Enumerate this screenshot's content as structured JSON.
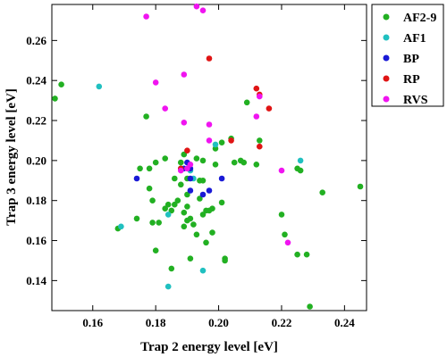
{
  "chart_data": {
    "type": "scatter",
    "title": "",
    "xlabel": "Trap 2 energy level [eV]",
    "ylabel": "Trap 3 energy level [eV]",
    "xlim": [
      0.147,
      0.247
    ],
    "ylim": [
      0.125,
      0.278
    ],
    "xticks": [
      0.16,
      0.18,
      0.2,
      0.22,
      0.24
    ],
    "xtick_labels": [
      "0.16",
      "0.18",
      "0.20",
      "0.22",
      "0.24"
    ],
    "yticks": [
      0.14,
      0.16,
      0.18,
      0.2,
      0.22,
      0.24,
      0.26
    ],
    "ytick_labels": [
      "0.14",
      "0.16",
      "0.18",
      "0.20",
      "0.22",
      "0.24",
      "0.26"
    ],
    "grid": false,
    "legend_position": "outside-top-right",
    "series": [
      {
        "name": "AF2-9",
        "color": "#22b022",
        "points": [
          [
            0.148,
            0.231
          ],
          [
            0.15,
            0.238
          ],
          [
            0.168,
            0.166
          ],
          [
            0.174,
            0.171
          ],
          [
            0.175,
            0.196
          ],
          [
            0.177,
            0.222
          ],
          [
            0.178,
            0.186
          ],
          [
            0.178,
            0.196
          ],
          [
            0.179,
            0.18
          ],
          [
            0.179,
            0.169
          ],
          [
            0.18,
            0.199
          ],
          [
            0.18,
            0.155
          ],
          [
            0.181,
            0.169
          ],
          [
            0.183,
            0.201
          ],
          [
            0.183,
            0.176
          ],
          [
            0.184,
            0.178
          ],
          [
            0.185,
            0.175
          ],
          [
            0.185,
            0.146
          ],
          [
            0.186,
            0.191
          ],
          [
            0.186,
            0.178
          ],
          [
            0.187,
            0.18
          ],
          [
            0.188,
            0.199
          ],
          [
            0.188,
            0.196
          ],
          [
            0.188,
            0.188
          ],
          [
            0.189,
            0.203
          ],
          [
            0.189,
            0.174
          ],
          [
            0.189,
            0.167
          ],
          [
            0.19,
            0.17
          ],
          [
            0.19,
            0.191
          ],
          [
            0.19,
            0.183
          ],
          [
            0.19,
            0.177
          ],
          [
            0.191,
            0.171
          ],
          [
            0.191,
            0.151
          ],
          [
            0.192,
            0.168
          ],
          [
            0.193,
            0.201
          ],
          [
            0.193,
            0.163
          ],
          [
            0.194,
            0.19
          ],
          [
            0.194,
            0.181
          ],
          [
            0.195,
            0.2
          ],
          [
            0.195,
            0.173
          ],
          [
            0.195,
            0.19
          ],
          [
            0.196,
            0.175
          ],
          [
            0.196,
            0.159
          ],
          [
            0.197,
            0.175
          ],
          [
            0.198,
            0.176
          ],
          [
            0.198,
            0.164
          ],
          [
            0.199,
            0.206
          ],
          [
            0.199,
            0.198
          ],
          [
            0.201,
            0.209
          ],
          [
            0.201,
            0.179
          ],
          [
            0.202,
            0.15
          ],
          [
            0.202,
            0.151
          ],
          [
            0.204,
            0.211
          ],
          [
            0.205,
            0.199
          ],
          [
            0.207,
            0.2
          ],
          [
            0.208,
            0.199
          ],
          [
            0.209,
            0.229
          ],
          [
            0.212,
            0.198
          ],
          [
            0.213,
            0.21
          ],
          [
            0.22,
            0.173
          ],
          [
            0.221,
            0.163
          ],
          [
            0.225,
            0.153
          ],
          [
            0.225,
            0.196
          ],
          [
            0.226,
            0.195
          ],
          [
            0.228,
            0.153
          ],
          [
            0.229,
            0.127
          ],
          [
            0.233,
            0.184
          ],
          [
            0.245,
            0.187
          ]
        ]
      },
      {
        "name": "AF1",
        "color": "#20c0c0",
        "points": [
          [
            0.162,
            0.237
          ],
          [
            0.169,
            0.167
          ],
          [
            0.184,
            0.173
          ],
          [
            0.184,
            0.137
          ],
          [
            0.191,
            0.195
          ],
          [
            0.192,
            0.191
          ],
          [
            0.195,
            0.145
          ],
          [
            0.199,
            0.208
          ],
          [
            0.226,
            0.2
          ]
        ]
      },
      {
        "name": "BP",
        "color": "#1a1ad6",
        "points": [
          [
            0.174,
            0.191
          ],
          [
            0.189,
            0.196
          ],
          [
            0.19,
            0.199
          ],
          [
            0.191,
            0.196
          ],
          [
            0.191,
            0.191
          ],
          [
            0.191,
            0.185
          ],
          [
            0.195,
            0.183
          ],
          [
            0.197,
            0.185
          ],
          [
            0.201,
            0.191
          ]
        ]
      },
      {
        "name": "RP",
        "color": "#e01414",
        "points": [
          [
            0.188,
            0.196
          ],
          [
            0.19,
            0.205
          ],
          [
            0.197,
            0.251
          ],
          [
            0.204,
            0.21
          ],
          [
            0.212,
            0.236
          ],
          [
            0.213,
            0.233
          ],
          [
            0.213,
            0.207
          ],
          [
            0.216,
            0.226
          ]
        ]
      },
      {
        "name": "RVS",
        "color": "#f014f0",
        "points": [
          [
            0.177,
            0.272
          ],
          [
            0.18,
            0.239
          ],
          [
            0.183,
            0.226
          ],
          [
            0.188,
            0.195
          ],
          [
            0.189,
            0.243
          ],
          [
            0.189,
            0.219
          ],
          [
            0.19,
            0.196
          ],
          [
            0.191,
            0.198
          ],
          [
            0.193,
            0.277
          ],
          [
            0.195,
            0.275
          ],
          [
            0.197,
            0.218
          ],
          [
            0.197,
            0.21
          ],
          [
            0.212,
            0.222
          ],
          [
            0.213,
            0.232
          ],
          [
            0.22,
            0.195
          ],
          [
            0.222,
            0.159
          ]
        ]
      }
    ]
  }
}
